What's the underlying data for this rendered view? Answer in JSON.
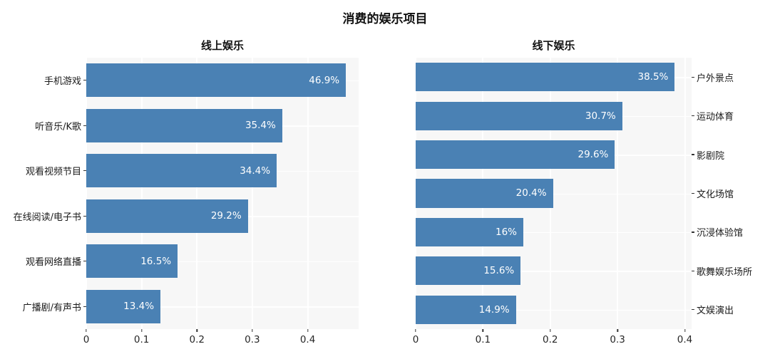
{
  "page_title": "消费的娱乐项目",
  "colors": {
    "bar": "#4a81b4",
    "plot_background": "#f7f7f7",
    "gridline": "#ffffff",
    "title_text": "#111111",
    "tick_text": "#262626",
    "category_text": "#1a1a1a",
    "value_label_text": "#ffffff"
  },
  "chart_data": [
    {
      "type": "bar",
      "orientation": "horizontal",
      "title": "线上娱乐",
      "categories": [
        "手机游戏",
        "听音乐/K歌",
        "观看视频节目",
        "在线阅读/电子书",
        "观看网络直播",
        "广播剧/有声书"
      ],
      "values": [
        0.469,
        0.354,
        0.344,
        0.292,
        0.165,
        0.134
      ],
      "bar_labels": [
        "46.9%",
        "35.4%",
        "34.4%",
        "29.2%",
        "16.5%",
        "13.4%"
      ],
      "xlim": [
        0,
        0.492
      ],
      "xtick_values": [
        0,
        0.1,
        0.2,
        0.3,
        0.4
      ],
      "xtick_labels": [
        "0",
        "0.1",
        "0.2",
        "0.3",
        "0.4"
      ],
      "category_side": "left",
      "grid": true,
      "legend": false
    },
    {
      "type": "bar",
      "orientation": "horizontal",
      "title": "线下娱乐",
      "categories": [
        "户外景点",
        "运动体育",
        "影剧院",
        "文化场馆",
        "沉浸体验馆",
        "歌舞娱乐场所",
        "文娱演出"
      ],
      "values": [
        0.385,
        0.307,
        0.296,
        0.204,
        0.16,
        0.156,
        0.149
      ],
      "bar_labels": [
        "38.5%",
        "30.7%",
        "29.6%",
        "20.4%",
        "16%",
        "15.6%",
        "14.9%"
      ],
      "xlim": [
        0,
        0.41
      ],
      "xtick_values": [
        0,
        0.1,
        0.2,
        0.3,
        0.4
      ],
      "xtick_labels": [
        "0",
        "0.1",
        "0.2",
        "0.3",
        "0.4"
      ],
      "category_side": "right",
      "grid": true,
      "legend": false
    }
  ]
}
